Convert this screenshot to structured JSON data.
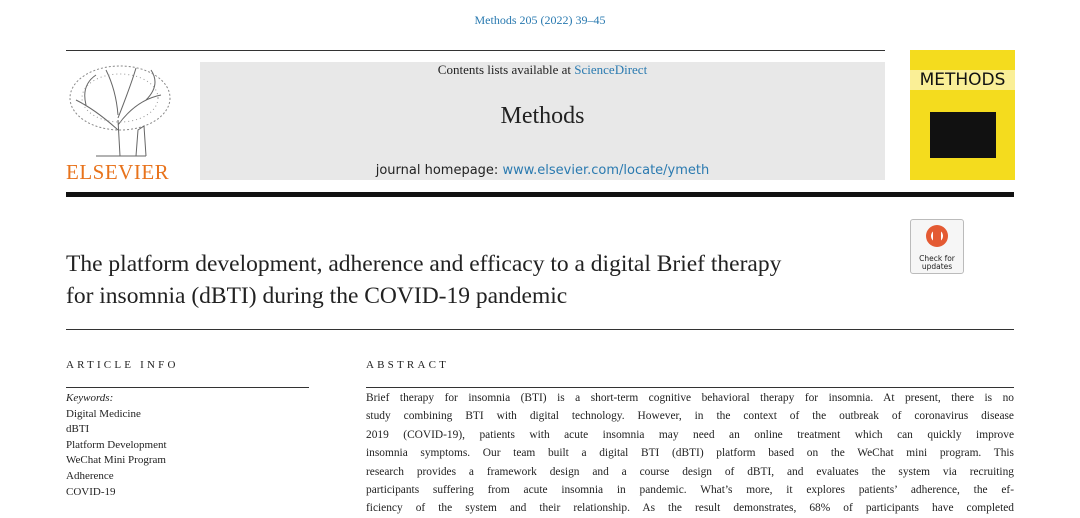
{
  "header": {
    "citation": "Methods 205 (2022) 39–45",
    "contents_prefix": "Contents lists available at",
    "contents_link": "ScienceDirect",
    "journal": "Methods",
    "homepage_prefix": "journal homepage:",
    "homepage_link": "www.elsevier.com/locate/ymeth",
    "publisher": "ELSEVIER",
    "cover_title": "METHODS",
    "check_updates": "Check for updates"
  },
  "article": {
    "title_lines": [
      "The platform development, adherence and efficacy to a digital Brief therapy",
      "for insomnia (dBTI) during the COVID-19 pandemic"
    ]
  },
  "article_info": {
    "heading": "ARTICLE INFO",
    "keywords_label": "Keywords:",
    "keywords": [
      "Digital Medicine",
      "dBTI",
      "Platform Development",
      "WeChat Mini Program",
      "Adherence",
      "COVID-19"
    ]
  },
  "abstract": {
    "heading": "ABSTRACT",
    "lines": [
      "Brief therapy for insomnia (BTI) is a short-term cognitive behavioral therapy for insomnia. At present, there is no",
      "study combining BTI with digital technology. However, in the context of the outbreak of coronavirus disease",
      "2019 (COVID-19), patients with acute insomnia may need an online treatment which can quickly improve",
      "insomnia symptoms. Our team built a digital BTI (dBTI) platform based on the WeChat mini program. This",
      "research provides a framework design and a course design of dBTI, and evaluates the system via recruiting",
      "participants suffering from acute insomnia in pandemic. What’s more, it explores patients’ adherence, the ef-",
      "ficiency of the system and their relationship. As the result demonstrates, 68% of participants have completed"
    ]
  }
}
